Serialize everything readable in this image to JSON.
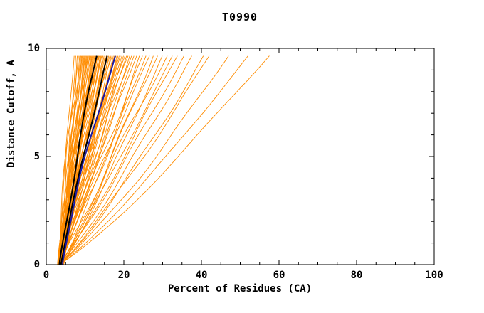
{
  "title": "T0990",
  "chart_data": {
    "type": "line",
    "title": "T0990",
    "xlabel": "Percent of Residues (CA)",
    "ylabel": "Distance Cutoff, A",
    "xlim": [
      0,
      100
    ],
    "ylim": [
      0,
      10
    ],
    "x_major_ticks": [
      0,
      20,
      40,
      60,
      80,
      100
    ],
    "x_minor_step": 5,
    "y_major_ticks": [
      0,
      5,
      10
    ],
    "y_minor_step": 1,
    "grid": false,
    "legend": "none",
    "curve_top_y": 9.65,
    "colors": {
      "model_line": "#FF8C00",
      "highlight_black": "#000000",
      "highlight_blue": "#1A1AA6",
      "frame": "#000000",
      "background": "#FFFFFF"
    },
    "orange_curves": [
      [
        3.0,
        7.2,
        1.0
      ],
      [
        3.3,
        7.6,
        1.15
      ],
      [
        3.6,
        8.0,
        0.95
      ],
      [
        3.9,
        8.3,
        1.25
      ],
      [
        4.2,
        8.6,
        1.05
      ],
      [
        3.1,
        8.9,
        1.3
      ],
      [
        3.5,
        9.1,
        0.9
      ],
      [
        4.0,
        9.3,
        1.2
      ],
      [
        2.9,
        9.5,
        1.1
      ],
      [
        3.7,
        9.7,
        0.98
      ],
      [
        4.4,
        9.9,
        1.18
      ],
      [
        3.2,
        10.1,
        1.08
      ],
      [
        3.0,
        10.3,
        1.0
      ],
      [
        3.3,
        10.5,
        1.15
      ],
      [
        3.6,
        10.7,
        0.95
      ],
      [
        3.9,
        10.9,
        1.25
      ],
      [
        4.2,
        11.1,
        1.05
      ],
      [
        3.1,
        11.3,
        1.3
      ],
      [
        3.5,
        11.5,
        0.9
      ],
      [
        4.0,
        11.7,
        1.2
      ],
      [
        2.9,
        11.9,
        1.1
      ],
      [
        3.7,
        12.1,
        0.98
      ],
      [
        4.4,
        12.3,
        1.18
      ],
      [
        3.2,
        12.5,
        1.08
      ],
      [
        3.0,
        12.7,
        1.0
      ],
      [
        3.3,
        12.9,
        1.15
      ],
      [
        3.6,
        13.1,
        0.95
      ],
      [
        3.9,
        13.3,
        1.25
      ],
      [
        4.2,
        13.5,
        1.05
      ],
      [
        3.1,
        13.7,
        1.3
      ],
      [
        3.5,
        13.9,
        0.9
      ],
      [
        4.0,
        14.1,
        1.2
      ],
      [
        2.9,
        14.3,
        1.1
      ],
      [
        3.7,
        14.6,
        0.98
      ],
      [
        4.4,
        14.9,
        1.18
      ],
      [
        3.2,
        15.2,
        1.08
      ],
      [
        3.0,
        15.5,
        1.0
      ],
      [
        3.3,
        15.8,
        1.15
      ],
      [
        3.6,
        16.1,
        0.95
      ],
      [
        3.9,
        16.4,
        1.25
      ],
      [
        4.2,
        16.7,
        1.05
      ],
      [
        3.1,
        17.0,
        1.3
      ],
      [
        3.5,
        17.3,
        0.9
      ],
      [
        4.0,
        17.6,
        1.2
      ],
      [
        2.9,
        17.9,
        1.1
      ],
      [
        3.7,
        18.2,
        0.98
      ],
      [
        4.4,
        18.5,
        1.18
      ],
      [
        3.2,
        18.8,
        1.08
      ],
      [
        3.0,
        19.1,
        1.0
      ],
      [
        3.3,
        19.5,
        1.15
      ],
      [
        3.6,
        19.9,
        0.95
      ],
      [
        3.9,
        20.3,
        1.25
      ],
      [
        4.2,
        20.7,
        1.05
      ],
      [
        3.1,
        21.1,
        1.3
      ],
      [
        3.5,
        21.5,
        0.9
      ],
      [
        4.0,
        22.0,
        1.2
      ],
      [
        2.9,
        22.6,
        0.95
      ],
      [
        3.7,
        23.3,
        1.05
      ],
      [
        4.4,
        24.0,
        0.9
      ],
      [
        3.2,
        24.8,
        1.0
      ],
      [
        3.0,
        25.7,
        0.93
      ],
      [
        3.3,
        26.6,
        1.03
      ],
      [
        3.6,
        27.6,
        0.88
      ],
      [
        3.9,
        28.7,
        0.98
      ],
      [
        4.2,
        29.9,
        0.91
      ],
      [
        3.1,
        31.2,
        1.01
      ],
      [
        3.5,
        32.5,
        0.94
      ],
      [
        4.0,
        33.8,
        0.96
      ],
      [
        3.0,
        35.5,
        0.9
      ],
      [
        3.2,
        37.5,
        0.87
      ],
      [
        3.1,
        40.5,
        0.84
      ],
      [
        3.3,
        42.0,
        0.88
      ],
      [
        3.0,
        47.0,
        0.85
      ],
      [
        3.2,
        52.0,
        0.86
      ],
      [
        3.1,
        57.5,
        0.86
      ]
    ],
    "highlight_curves": [
      {
        "x0": 3.4,
        "x1": 13.0,
        "a": 1.15,
        "color": "#000000",
        "width": 2.0
      },
      {
        "x0": 3.8,
        "x1": 15.7,
        "a": 1.08,
        "color": "#000000",
        "width": 2.0
      },
      {
        "x0": 4.2,
        "x1": 17.8,
        "a": 1.22,
        "color": "#1A1AA6",
        "width": 2.0
      }
    ]
  }
}
